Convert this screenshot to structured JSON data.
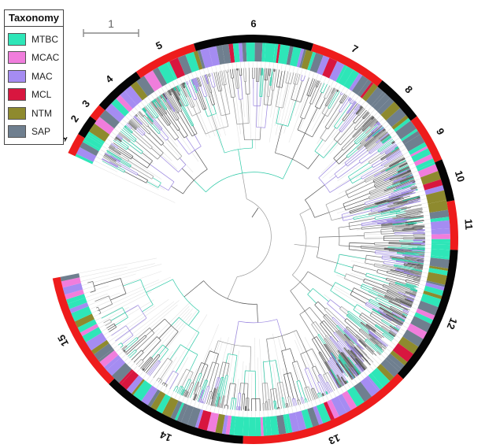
{
  "legend": {
    "title": "Taxonomy",
    "items": [
      {
        "label": "MTBC",
        "color": "#2ee6b8"
      },
      {
        "label": "MCAC",
        "color": "#f07ddc"
      },
      {
        "label": "MAC",
        "color": "#a58cf2"
      },
      {
        "label": "MCL",
        "color": "#d8163f"
      },
      {
        "label": "NTM",
        "color": "#8e8a2e"
      },
      {
        "label": "SAP",
        "color": "#6f7f8f"
      }
    ]
  },
  "scale_bar": {
    "label": "1"
  },
  "clades": [
    {
      "label": "1",
      "color": "red"
    },
    {
      "label": "2",
      "color": "black"
    },
    {
      "label": "3",
      "color": "red"
    },
    {
      "label": "4",
      "color": "black"
    },
    {
      "label": "5",
      "color": "red"
    },
    {
      "label": "6",
      "color": "black"
    },
    {
      "label": "7",
      "color": "red"
    },
    {
      "label": "8",
      "color": "black"
    },
    {
      "label": "9",
      "color": "red"
    },
    {
      "label": "10",
      "color": "black"
    },
    {
      "label": "11",
      "color": "red"
    },
    {
      "label": "12",
      "color": "black"
    },
    {
      "label": "13",
      "color": "red"
    },
    {
      "label": "14",
      "color": "black"
    },
    {
      "label": "15",
      "color": "red"
    }
  ]
}
